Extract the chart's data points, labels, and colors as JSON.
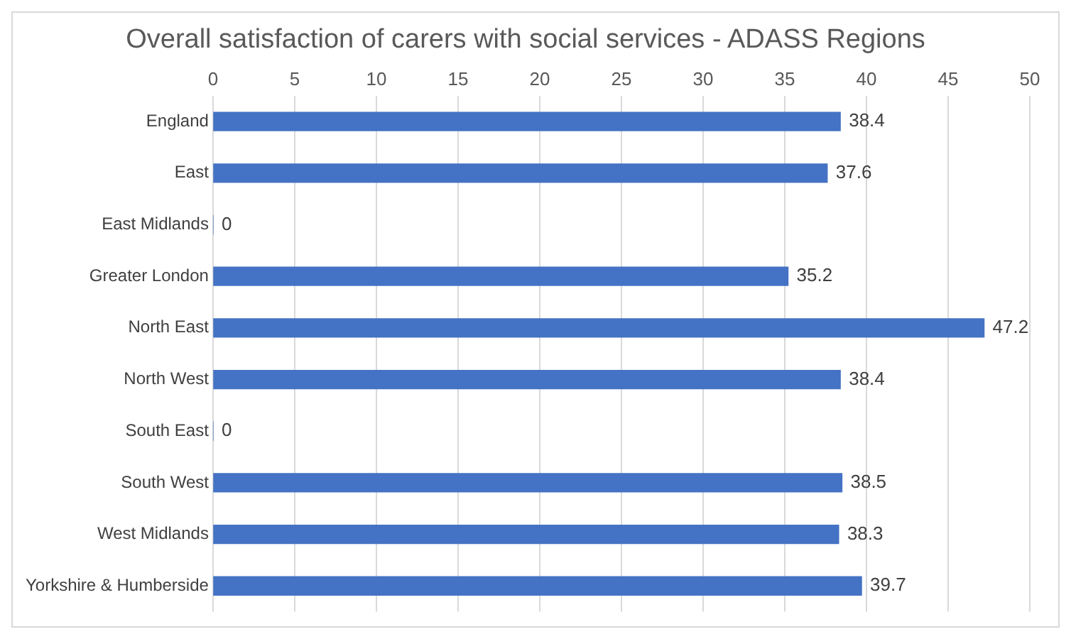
{
  "chart_data": {
    "type": "bar",
    "title": "Overall satisfaction of carers with social services - ADASS Regions",
    "orientation": "horizontal",
    "categories": [
      "England",
      "East",
      "East Midlands",
      "Greater London",
      "North East",
      "North West",
      "South East",
      "South West",
      "West Midlands",
      "Yorkshire & Humberside"
    ],
    "values": [
      38.4,
      37.6,
      0,
      35.2,
      47.2,
      38.4,
      0,
      38.5,
      38.3,
      39.7
    ],
    "color": "#4472c4",
    "xlim": [
      0,
      50
    ],
    "xticks": [
      0,
      5,
      10,
      15,
      20,
      25,
      30,
      35,
      40,
      45,
      50
    ],
    "grid": "x",
    "data_labels": true
  }
}
